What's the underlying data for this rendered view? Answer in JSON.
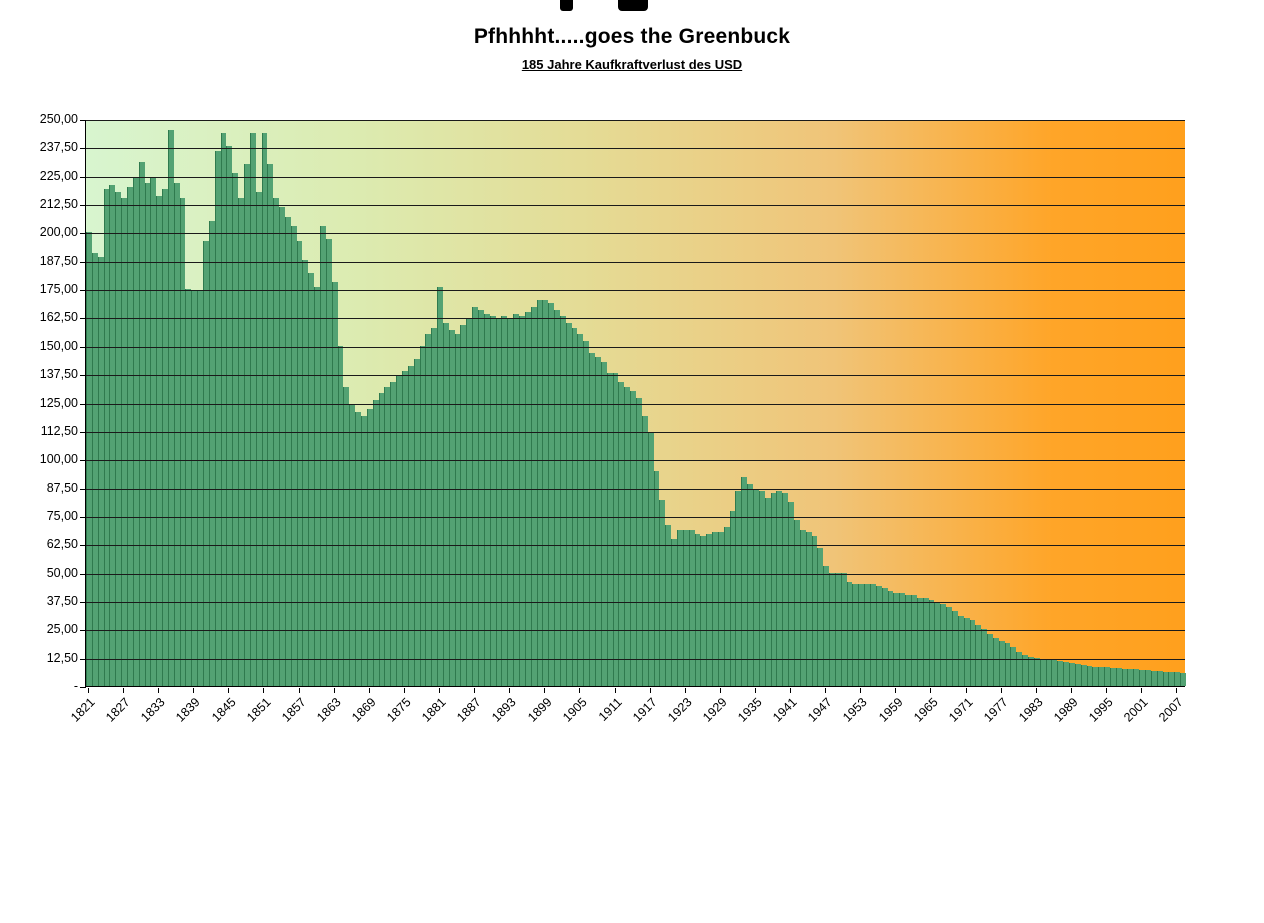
{
  "page": {
    "background": "#ffffff"
  },
  "header": {
    "title": "Pfhhhht.....goes the Greenbuck",
    "subtitle": "185 Jahre Kaufkraftverlust des USD"
  },
  "chart_data": {
    "type": "bar",
    "title": "Pfhhhht.....goes the Greenbuck",
    "subtitle": "185 Jahre Kaufkraftverlust des USD",
    "xlabel": "",
    "ylabel": "",
    "ylim": [
      0,
      250
    ],
    "ytick_step": 12.5,
    "grid": "horizontal-black-lines-over-bars",
    "legend_position": "none",
    "ytick_labels_top_to_bottom": [
      "250,00",
      "237,50",
      "225,00",
      "212,50",
      "200,00",
      "187,50",
      "175,00",
      "162,50",
      "150,00",
      "137,50",
      "125,00",
      "112,50",
      "100,00",
      "87,50",
      "75,00",
      "62,50",
      "50,00",
      "37,50",
      "25,00",
      "12,50",
      "-"
    ],
    "xtick_labels": [
      "1821",
      "1827",
      "1833",
      "1839",
      "1845",
      "1851",
      "1857",
      "1863",
      "1869",
      "1875",
      "1881",
      "1887",
      "1893",
      "1899",
      "1905",
      "1911",
      "1917",
      "1923",
      "1929",
      "1935",
      "1941",
      "1947",
      "1953",
      "1959",
      "1965",
      "1971",
      "1977",
      "1983",
      "1989",
      "1995",
      "2001",
      "2007"
    ],
    "years": [
      1821,
      1822,
      1823,
      1824,
      1825,
      1826,
      1827,
      1828,
      1829,
      1830,
      1831,
      1832,
      1833,
      1834,
      1835,
      1836,
      1837,
      1838,
      1839,
      1840,
      1841,
      1842,
      1843,
      1844,
      1845,
      1846,
      1847,
      1848,
      1849,
      1850,
      1851,
      1852,
      1853,
      1854,
      1855,
      1856,
      1857,
      1858,
      1859,
      1860,
      1861,
      1862,
      1863,
      1864,
      1865,
      1866,
      1867,
      1868,
      1869,
      1870,
      1871,
      1872,
      1873,
      1874,
      1875,
      1876,
      1877,
      1878,
      1879,
      1880,
      1881,
      1882,
      1883,
      1884,
      1885,
      1886,
      1887,
      1888,
      1889,
      1890,
      1891,
      1892,
      1893,
      1894,
      1895,
      1896,
      1897,
      1898,
      1899,
      1900,
      1901,
      1902,
      1903,
      1904,
      1905,
      1906,
      1907,
      1908,
      1909,
      1910,
      1911,
      1912,
      1913,
      1914,
      1915,
      1916,
      1917,
      1918,
      1919,
      1920,
      1921,
      1922,
      1923,
      1924,
      1925,
      1926,
      1927,
      1928,
      1929,
      1930,
      1931,
      1932,
      1933,
      1934,
      1935,
      1936,
      1937,
      1938,
      1939,
      1940,
      1941,
      1942,
      1943,
      1944,
      1945,
      1946,
      1947,
      1948,
      1949,
      1950,
      1951,
      1952,
      1953,
      1954,
      1955,
      1956,
      1957,
      1958,
      1959,
      1960,
      1961,
      1962,
      1963,
      1964,
      1965,
      1966,
      1967,
      1968,
      1969,
      1970,
      1971,
      1972,
      1973,
      1974,
      1975,
      1976,
      1977,
      1978,
      1979,
      1980,
      1981,
      1982,
      1983,
      1984,
      1985,
      1986,
      1987,
      1988,
      1989,
      1990,
      1991,
      1992,
      1993,
      1994,
      1995,
      1996,
      1997,
      1998,
      1999,
      2000,
      2001,
      2002,
      2003,
      2004,
      2005,
      2006,
      2007,
      2008
    ],
    "values": [
      200,
      191,
      189,
      219,
      221,
      218,
      215,
      220,
      224,
      231,
      222,
      224,
      216,
      219,
      245,
      222,
      215,
      175,
      174,
      174,
      196,
      205,
      236,
      244,
      238,
      226,
      215,
      230,
      244,
      218,
      244,
      230,
      215,
      211,
      207,
      203,
      196,
      188,
      182,
      176,
      203,
      197,
      178,
      150,
      132,
      124,
      121,
      119,
      122,
      126,
      129,
      132,
      134,
      137,
      139,
      141,
      144,
      150,
      155,
      158,
      176,
      160,
      157,
      155,
      159,
      162,
      167,
      166,
      164,
      163,
      162,
      163,
      162,
      164,
      163,
      165,
      167,
      170,
      170,
      169,
      166,
      163,
      160,
      158,
      155,
      152,
      147,
      145,
      143,
      138,
      138,
      134,
      132,
      130,
      127,
      119,
      112,
      95,
      82,
      71,
      65,
      69,
      69,
      69,
      67,
      66,
      67,
      68,
      68,
      70,
      77,
      86,
      92,
      89,
      87,
      86,
      83,
      85,
      86,
      85,
      81,
      73,
      69,
      68,
      66,
      61,
      53,
      50,
      50,
      50,
      46,
      45,
      45,
      45,
      45,
      44,
      43,
      42,
      41,
      41,
      40,
      40,
      39,
      39,
      38,
      37,
      36,
      35,
      33,
      31,
      30,
      29,
      27,
      25,
      23,
      21,
      20,
      19,
      17,
      15,
      13.5,
      13,
      12.5,
      12,
      11.5,
      11.3,
      11,
      10.5,
      10,
      9.5,
      9.1,
      8.9,
      8.6,
      8.4,
      8.2,
      8,
      7.8,
      7.7,
      7.5,
      7.3,
      7.1,
      7,
      6.8,
      6.6,
      6.4,
      6.2,
      6,
      5.9
    ],
    "styles": {
      "bar_fill": "#53a273",
      "bar_edge": "#2f7a4e",
      "gridline_color": "#1a1a1a",
      "axis_color": "#000000",
      "background_gradient_left_to_right": [
        "#d8f5cf",
        "#dcebb0",
        "#e4dc96",
        "#f0c478",
        "#ffa01d"
      ]
    }
  }
}
